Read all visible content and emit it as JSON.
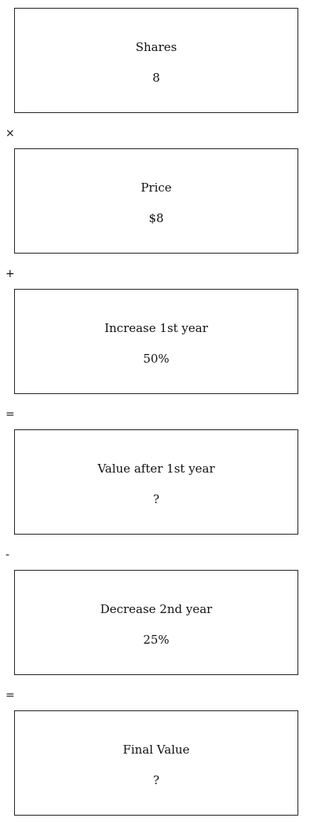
{
  "steps": [
    {
      "label": "Shares",
      "value": "8"
    },
    {
      "label": "Price",
      "value": "$8"
    },
    {
      "label": "Increase 1st year",
      "value": "50%"
    },
    {
      "label": "Value after 1st year",
      "value": "?"
    },
    {
      "label": "Decrease 2nd year",
      "value": "25%"
    },
    {
      "label": "Final Value",
      "value": "?"
    }
  ],
  "operators": [
    "×",
    "+",
    "=",
    "-",
    "="
  ]
}
